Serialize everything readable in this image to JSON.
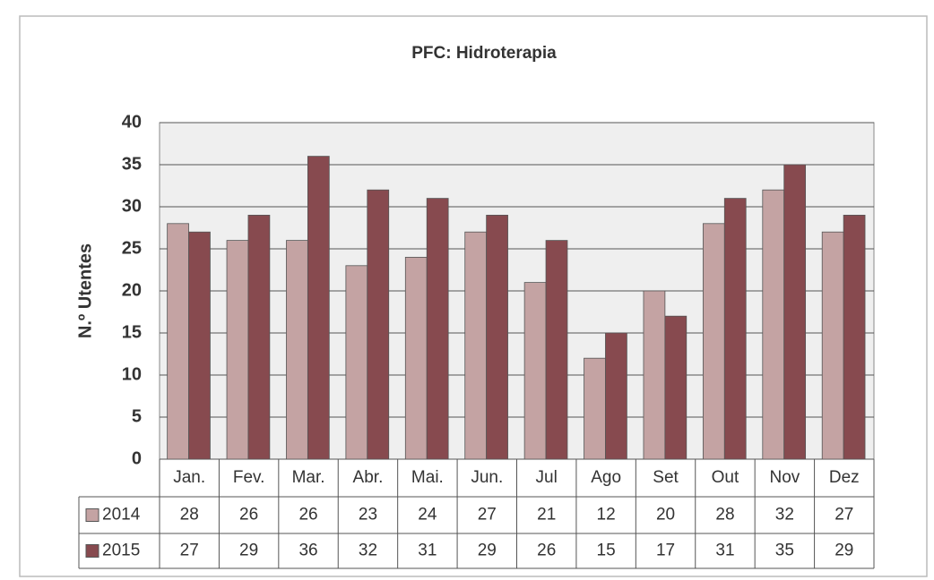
{
  "chart_data": {
    "type": "bar",
    "title": "PFC: Hidroterapia",
    "y_label": "N.º Utentes",
    "categories": [
      "Jan.",
      "Fev.",
      "Mar.",
      "Abr.",
      "Mai.",
      "Jun.",
      "Jul",
      "Ago",
      "Set",
      "Out",
      "Nov",
      "Dez"
    ],
    "series": [
      {
        "name": "2014",
        "color": "#c4a3a3",
        "values": [
          28,
          26,
          26,
          23,
          24,
          27,
          21,
          12,
          20,
          28,
          32,
          27
        ]
      },
      {
        "name": "2015",
        "color": "#874a4f",
        "values": [
          27,
          29,
          36,
          32,
          31,
          29,
          26,
          15,
          17,
          31,
          35,
          29
        ]
      }
    ],
    "ylim": [
      0,
      40
    ],
    "yticks": [
      0,
      5,
      10,
      15,
      20,
      25,
      30,
      35,
      40
    ],
    "grid": true
  }
}
